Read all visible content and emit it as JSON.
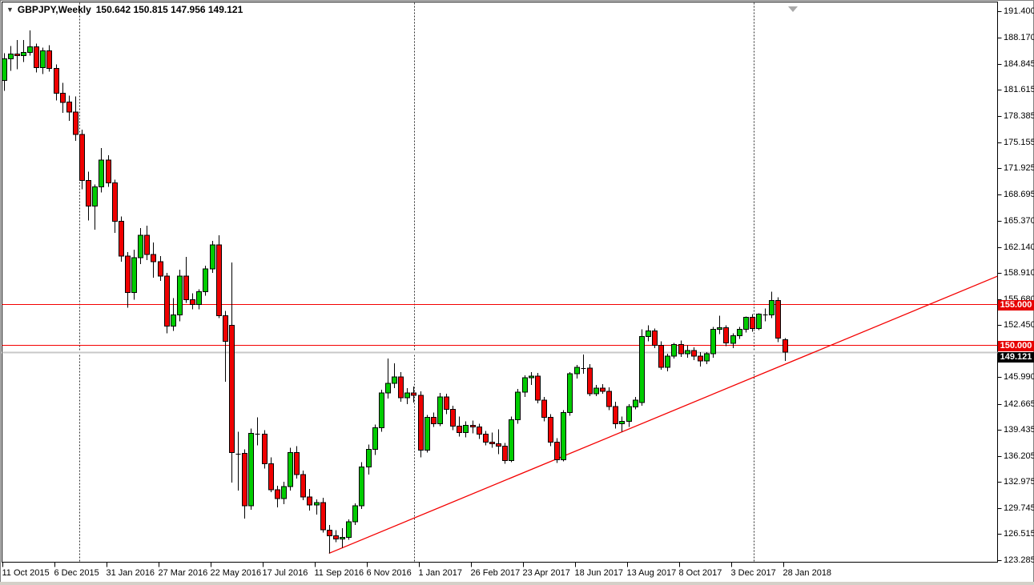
{
  "title_bar": {
    "dropdown_arrow": "▼",
    "symbol": "GBPJPY,Weekly",
    "ohlc_text": "150.642 150.815 147.956 149.121"
  },
  "y_axis": {
    "tick_labels": [
      "191.400",
      "188.170",
      "184.845",
      "181.615",
      "178.385",
      "175.155",
      "171.925",
      "168.695",
      "165.370",
      "162.140",
      "158.910",
      "155.680",
      "152.450",
      "145.990",
      "142.665",
      "139.435",
      "136.205",
      "132.975",
      "129.745",
      "126.515",
      "123.285"
    ]
  },
  "x_axis": {
    "tick_labels": [
      "11 Oct 2015",
      "6 Dec 2015",
      "31 Jan 2016",
      "27 Mar 2016",
      "22 May 2016",
      "17 Jul 2016",
      "11 Sep 2016",
      "6 Nov 2016",
      "1 Jan 2017",
      "26 Feb 2017",
      "23 Apr 2017",
      "18 Jun 2017",
      "13 Aug 2017",
      "8 Oct 2017",
      "3 Dec 2017",
      "28 Jan 2018"
    ]
  },
  "price_badges": [
    {
      "text": "155.000",
      "price": 155.0,
      "bg": "#e60000",
      "fg": "#ffffff"
    },
    {
      "text": "150.000",
      "price": 150.0,
      "bg": "#e60000",
      "fg": "#ffffff"
    }
  ],
  "current_price_badge": {
    "text": "149.121",
    "price": 149.121,
    "bg": "#000000",
    "fg": "#ffffff"
  },
  "chart_data": {
    "type": "candlestick",
    "title": "GBPJPY,Weekly",
    "last_bar_ohlc": {
      "open": 150.642,
      "high": 150.815,
      "low": 147.956,
      "close": 149.121
    },
    "y_axis_range": [
      123.285,
      191.4
    ],
    "grid": false,
    "colors": {
      "bull": "#00cc00",
      "bear": "#ef0000",
      "outline": "#000000",
      "level_lines": "#f40000",
      "trendline": "#f40000",
      "current_price_line": "#c8c8c8",
      "year_separator": "#303030",
      "badge_red": "#e60000",
      "badge_black": "#000000"
    },
    "horizontal_levels": [
      155.0,
      150.0
    ],
    "current_price": 149.121,
    "trendline": {
      "from_week": 50,
      "from_price": 124.1,
      "to_week": 152.7,
      "to_price": 158.5
    },
    "year_separators_week_index": [
      11.63,
      63.08,
      115.26
    ],
    "candles": [
      [
        182.8,
        186.2,
        181.5,
        185.5
      ],
      [
        185.5,
        187.1,
        184.0,
        186.1
      ],
      [
        186.1,
        187.8,
        184.2,
        185.9
      ],
      [
        185.9,
        187.8,
        185.1,
        186.3
      ],
      [
        186.3,
        189.0,
        185.9,
        187.0
      ],
      [
        187.0,
        187.4,
        183.8,
        184.4
      ],
      [
        184.4,
        186.9,
        183.6,
        186.5
      ],
      [
        186.5,
        187.2,
        183.9,
        184.3
      ],
      [
        184.3,
        184.8,
        180.3,
        181.2
      ],
      [
        181.2,
        182.5,
        178.8,
        180.1
      ],
      [
        180.1,
        180.9,
        177.8,
        178.9
      ],
      [
        178.9,
        180.8,
        175.3,
        176.1
      ],
      [
        176.1,
        176.7,
        169.3,
        170.4
      ],
      [
        170.4,
        171.5,
        165.4,
        167.2
      ],
      [
        167.2,
        169.9,
        164.3,
        169.6
      ],
      [
        169.6,
        174.4,
        168.9,
        172.9
      ],
      [
        172.9,
        173.5,
        169.6,
        170.1
      ],
      [
        170.1,
        170.5,
        163.9,
        165.3
      ],
      [
        165.3,
        165.9,
        160.3,
        161.0
      ],
      [
        161.0,
        161.5,
        154.6,
        156.5
      ],
      [
        156.5,
        161.8,
        155.6,
        160.8
      ],
      [
        160.8,
        164.5,
        160.0,
        163.6
      ],
      [
        163.6,
        164.8,
        160.5,
        161.2
      ],
      [
        161.2,
        162.7,
        158.3,
        160.3
      ],
      [
        160.3,
        161.0,
        157.9,
        158.5
      ],
      [
        158.5,
        158.9,
        151.4,
        152.3
      ],
      [
        152.3,
        155.8,
        151.7,
        153.7
      ],
      [
        153.7,
        159.3,
        152.9,
        158.5
      ],
      [
        158.5,
        160.9,
        155.2,
        155.6
      ],
      [
        155.6,
        156.4,
        154.4,
        155.0
      ],
      [
        155.0,
        156.9,
        154.4,
        156.6
      ],
      [
        156.6,
        159.8,
        156.1,
        159.4
      ],
      [
        159.4,
        162.9,
        158.9,
        162.4
      ],
      [
        162.4,
        163.6,
        153.3,
        153.6
      ],
      [
        153.6,
        154.2,
        145.4,
        150.4
      ],
      [
        152.4,
        160.2,
        132.9,
        136.6
      ],
      [
        136.6,
        139.2,
        131.9,
        136.5
      ],
      [
        136.5,
        137.0,
        128.4,
        130.0
      ],
      [
        130.0,
        139.6,
        129.5,
        139.0
      ],
      [
        139.0,
        141.0,
        137.5,
        138.9
      ],
      [
        138.9,
        139.4,
        134.6,
        135.2
      ],
      [
        135.2,
        136.0,
        131.7,
        132.0
      ],
      [
        132.0,
        132.5,
        129.8,
        130.9
      ],
      [
        130.9,
        133.0,
        130.2,
        132.4
      ],
      [
        132.4,
        137.2,
        131.9,
        136.6
      ],
      [
        136.6,
        137.4,
        133.4,
        133.9
      ],
      [
        133.9,
        134.4,
        130.7,
        131.1
      ],
      [
        131.1,
        132.1,
        129.4,
        130.1
      ],
      [
        130.1,
        130.8,
        128.9,
        130.4
      ],
      [
        130.4,
        131.0,
        126.7,
        127.0
      ],
      [
        127.0,
        127.6,
        124.1,
        126.3
      ],
      [
        126.3,
        127.0,
        125.5,
        125.9
      ],
      [
        125.9,
        127.2,
        124.8,
        126.1
      ],
      [
        126.1,
        128.3,
        125.8,
        128.0
      ],
      [
        128.0,
        130.3,
        127.6,
        130.0
      ],
      [
        130.0,
        135.4,
        129.6,
        134.8
      ],
      [
        134.8,
        137.6,
        133.9,
        137.0
      ],
      [
        137.0,
        140.1,
        136.3,
        139.7
      ],
      [
        139.7,
        144.4,
        139.2,
        144.0
      ],
      [
        144.0,
        148.3,
        143.3,
        145.2
      ],
      [
        145.2,
        147.7,
        144.6,
        146.0
      ],
      [
        146.0,
        146.6,
        142.9,
        143.4
      ],
      [
        143.4,
        144.6,
        142.6,
        144.0
      ],
      [
        144.0,
        144.8,
        142.8,
        143.7
      ],
      [
        143.7,
        144.2,
        136.0,
        136.9
      ],
      [
        136.9,
        141.3,
        136.6,
        141.0
      ],
      [
        141.0,
        141.6,
        139.8,
        140.2
      ],
      [
        140.2,
        144.0,
        139.9,
        143.5
      ],
      [
        143.5,
        143.9,
        141.4,
        142.0
      ],
      [
        142.0,
        142.4,
        139.4,
        139.9
      ],
      [
        139.9,
        141.1,
        138.6,
        139.1
      ],
      [
        139.1,
        140.5,
        138.5,
        140.0
      ],
      [
        140.0,
        140.6,
        139.0,
        139.8
      ],
      [
        139.8,
        140.2,
        138.3,
        138.9
      ],
      [
        138.9,
        139.3,
        137.5,
        137.9
      ],
      [
        137.9,
        139.1,
        137.2,
        137.7
      ],
      [
        137.7,
        139.5,
        136.4,
        137.4
      ],
      [
        137.4,
        137.8,
        135.2,
        135.6
      ],
      [
        135.6,
        141.1,
        135.4,
        140.7
      ],
      [
        140.7,
        144.5,
        140.2,
        144.1
      ],
      [
        144.1,
        146.2,
        143.5,
        145.9
      ],
      [
        145.9,
        146.6,
        145.0,
        146.1
      ],
      [
        146.1,
        146.5,
        142.7,
        143.1
      ],
      [
        143.1,
        143.5,
        140.5,
        141.0
      ],
      [
        141.0,
        141.4,
        137.4,
        137.9
      ],
      [
        137.9,
        138.4,
        135.3,
        135.7
      ],
      [
        135.7,
        141.9,
        135.5,
        141.6
      ],
      [
        141.6,
        146.6,
        141.2,
        146.4
      ],
      [
        146.4,
        147.5,
        145.8,
        147.2
      ],
      [
        147.2,
        148.8,
        146.4,
        147.1
      ],
      [
        147.1,
        147.6,
        143.6,
        143.9
      ],
      [
        143.9,
        145.0,
        143.6,
        144.6
      ],
      [
        144.6,
        145.1,
        143.9,
        144.2
      ],
      [
        144.2,
        144.7,
        141.9,
        142.3
      ],
      [
        142.3,
        142.9,
        139.6,
        140.2
      ],
      [
        140.2,
        141.1,
        139.2,
        140.5
      ],
      [
        140.5,
        142.6,
        139.8,
        142.3
      ],
      [
        142.3,
        143.5,
        142.0,
        143.1
      ],
      [
        142.8,
        151.9,
        142.4,
        151.0
      ],
      [
        151.0,
        152.4,
        150.4,
        151.7
      ],
      [
        151.7,
        152.0,
        149.6,
        149.9
      ],
      [
        149.9,
        150.4,
        146.9,
        147.2
      ],
      [
        147.2,
        148.9,
        146.7,
        148.6
      ],
      [
        148.6,
        150.2,
        148.3,
        150.0
      ],
      [
        150.0,
        150.5,
        148.5,
        148.9
      ],
      [
        148.9,
        149.9,
        148.4,
        149.3
      ],
      [
        149.3,
        149.7,
        148.1,
        148.6
      ],
      [
        148.6,
        149.1,
        147.3,
        148.0
      ],
      [
        148.0,
        149.1,
        147.6,
        148.9
      ],
      [
        148.9,
        152.2,
        148.4,
        151.9
      ],
      [
        151.9,
        153.6,
        151.3,
        152.1
      ],
      [
        152.1,
        152.4,
        149.8,
        150.2
      ],
      [
        150.2,
        151.4,
        149.6,
        151.1
      ],
      [
        151.1,
        152.2,
        150.7,
        151.9
      ],
      [
        151.9,
        153.5,
        151.5,
        153.4
      ],
      [
        153.4,
        153.8,
        151.6,
        152.0
      ],
      [
        152.0,
        153.9,
        151.8,
        153.8
      ],
      [
        153.8,
        154.5,
        152.9,
        153.7
      ],
      [
        153.7,
        156.6,
        153.3,
        155.5
      ],
      [
        155.5,
        155.9,
        150.3,
        150.8
      ],
      [
        150.6,
        150.8,
        148.0,
        149.1
      ]
    ]
  }
}
